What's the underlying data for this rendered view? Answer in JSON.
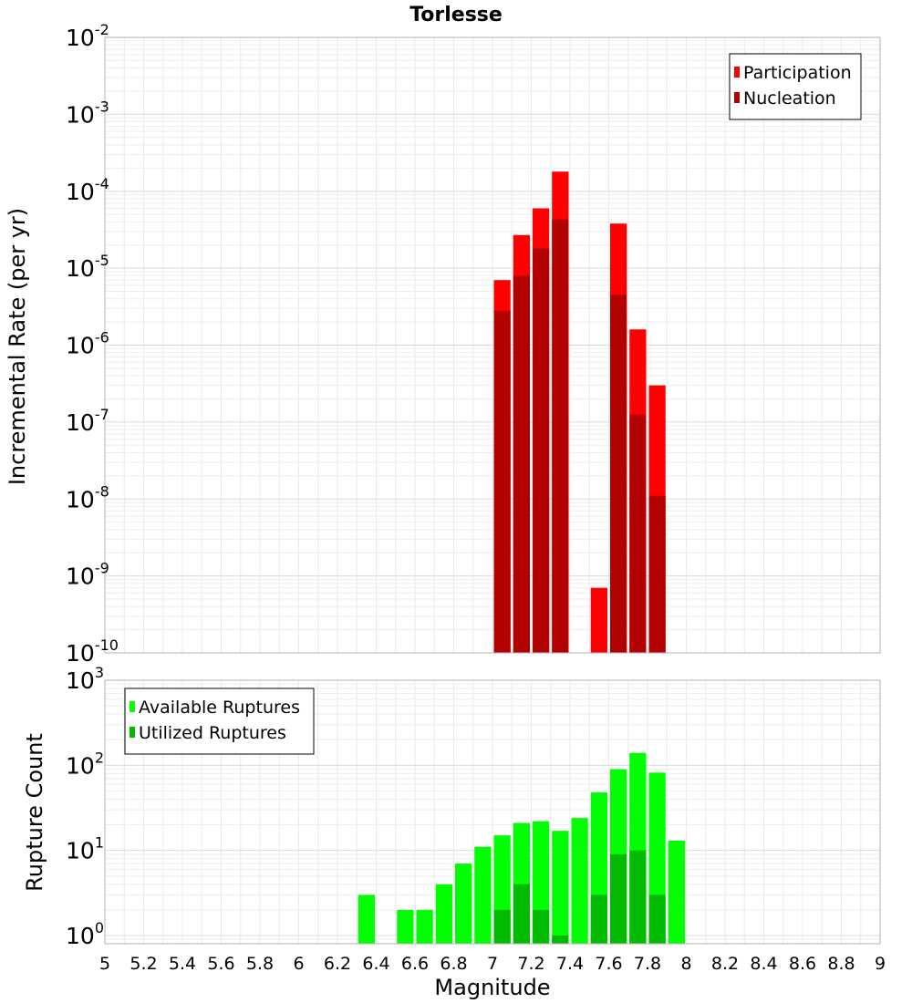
{
  "chart_data": [
    {
      "type": "bar",
      "title": "Torlesse",
      "xlabel": "",
      "ylabel": "Incremental Rate (per yr)",
      "y_scale": "log",
      "ylim": [
        1e-10,
        0.01
      ],
      "xlim": [
        5,
        9
      ],
      "grid": true,
      "legend_position": "top-right",
      "ytick_exponents": [
        "-10",
        "-9",
        "-8",
        "-7",
        "-6",
        "-5",
        "-4",
        "-3",
        "-2"
      ],
      "ytick_base": "10",
      "series": [
        {
          "name": "Participation",
          "color": "#ff0000",
          "x": [
            7.05,
            7.15,
            7.25,
            7.35,
            7.55,
            7.65,
            7.75,
            7.85
          ],
          "values": [
            7e-06,
            2.7e-05,
            6e-05,
            0.00018,
            7e-10,
            3.8e-05,
            1.6e-06,
            3e-07
          ]
        },
        {
          "name": "Nucleation",
          "color": "#b30000",
          "x": [
            7.05,
            7.15,
            7.25,
            7.35,
            7.65,
            7.75,
            7.85
          ],
          "values": [
            2.8e-06,
            8e-06,
            1.8e-05,
            4.3e-05,
            4.5e-06,
            1.25e-07,
            1.1e-08
          ]
        }
      ]
    },
    {
      "type": "bar",
      "title": "",
      "xlabel": "Magnitude",
      "ylabel": "Rupture Count",
      "y_scale": "log",
      "ylim": [
        0.8,
        1000
      ],
      "xlim": [
        5,
        9
      ],
      "grid": true,
      "legend_position": "top-left",
      "ytick_exponents": [
        "0",
        "1",
        "2",
        "3"
      ],
      "ytick_base": "10",
      "xticks": [
        "5",
        "5.2",
        "5.4",
        "5.6",
        "5.8",
        "6",
        "6.2",
        "6.4",
        "6.6",
        "6.8",
        "7",
        "7.2",
        "7.4",
        "7.6",
        "7.8",
        "8",
        "8.2",
        "8.4",
        "8.6",
        "8.8",
        "9"
      ],
      "series": [
        {
          "name": "Available Ruptures",
          "color": "#00ff00",
          "x": [
            6.35,
            6.55,
            6.65,
            6.75,
            6.85,
            6.95,
            7.05,
            7.15,
            7.25,
            7.35,
            7.45,
            7.55,
            7.65,
            7.75,
            7.85,
            7.95
          ],
          "values": [
            3,
            2,
            2,
            4,
            7,
            11,
            15,
            21,
            22,
            17,
            24,
            48,
            90,
            140,
            82,
            13
          ]
        },
        {
          "name": "Utilized Ruptures",
          "color": "#00bb00",
          "x": [
            7.05,
            7.15,
            7.25,
            7.35,
            7.55,
            7.65,
            7.75,
            7.85
          ],
          "values": [
            2,
            4,
            2,
            1,
            3,
            9,
            10,
            3
          ]
        }
      ]
    }
  ]
}
